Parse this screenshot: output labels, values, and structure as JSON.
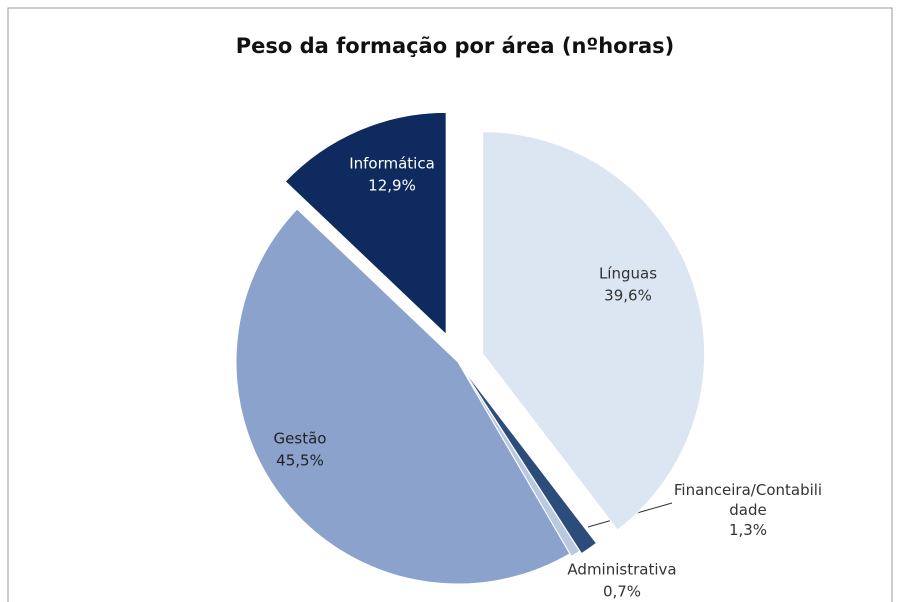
{
  "chart_data": {
    "type": "pie",
    "title": "Peso da formação por área (nºhoras)",
    "categories": [
      "Línguas",
      "Financeira/Contabilidade",
      "Administrativa",
      "Gestão",
      "Informática"
    ],
    "values": [
      39.6,
      1.3,
      0.7,
      45.5,
      12.9
    ],
    "value_labels": [
      "39,6%",
      "1,3%",
      "0,7%",
      "45,5%",
      "12,9%"
    ],
    "colors": [
      "#dce6f2",
      "#2c4d7c",
      "#b9c9e1",
      "#8aa2cc",
      "#0f2a5e"
    ]
  }
}
